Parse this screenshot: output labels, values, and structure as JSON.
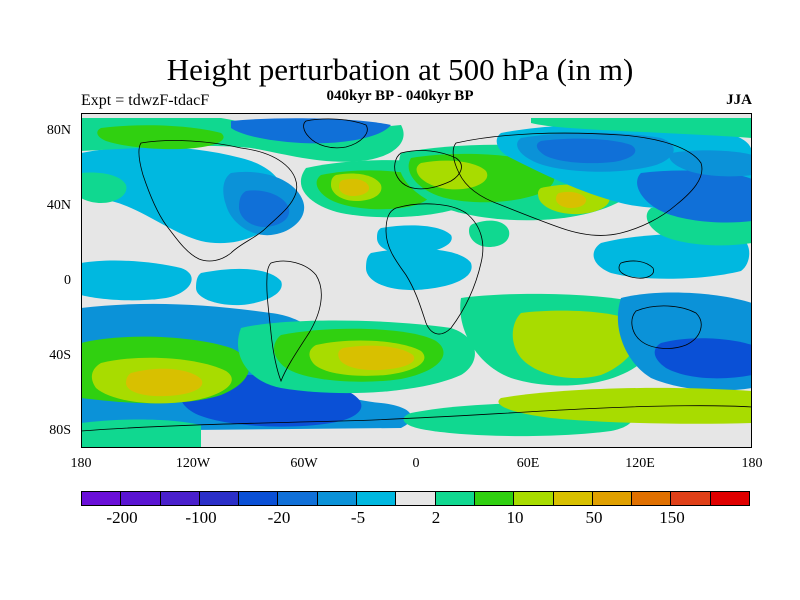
{
  "title": "Height perturbation at 500 hPa (in m)",
  "left_string": "Expt = tdwzF-tdacF",
  "center_string": "040kyr BP - 040kyr BP",
  "right_string": "JJA",
  "lat_labels": [
    "80N",
    "40N",
    "0",
    "40S",
    "80S"
  ],
  "lon_labels": [
    "180",
    "120W",
    "60W",
    "0",
    "60E",
    "120E",
    "180"
  ],
  "colorbar": {
    "colors": [
      "#6a0fd8",
      "#5a14d2",
      "#4a20cc",
      "#2b2fc8",
      "#0a50d6",
      "#1070d8",
      "#0b92d8",
      "#00b8e0",
      "#e6e6e6",
      "#10d890",
      "#30d010",
      "#a8dc00",
      "#d8c000",
      "#e0a000",
      "#e07000",
      "#e04018",
      "#e00000"
    ],
    "labels": [
      "-200",
      "-100",
      "-20",
      "-5",
      "2",
      "10",
      "50",
      "150"
    ]
  },
  "map_colors": {
    "background": "#e6e6e6",
    "cyan": "#00b8e0",
    "lightblue": "#0b92d8",
    "blue": "#1070d8",
    "darkblue": "#0a50d6",
    "green": "#10d890",
    "limegreen": "#30d010",
    "yellowgreen": "#a8dc00",
    "yellow": "#d8c000"
  }
}
